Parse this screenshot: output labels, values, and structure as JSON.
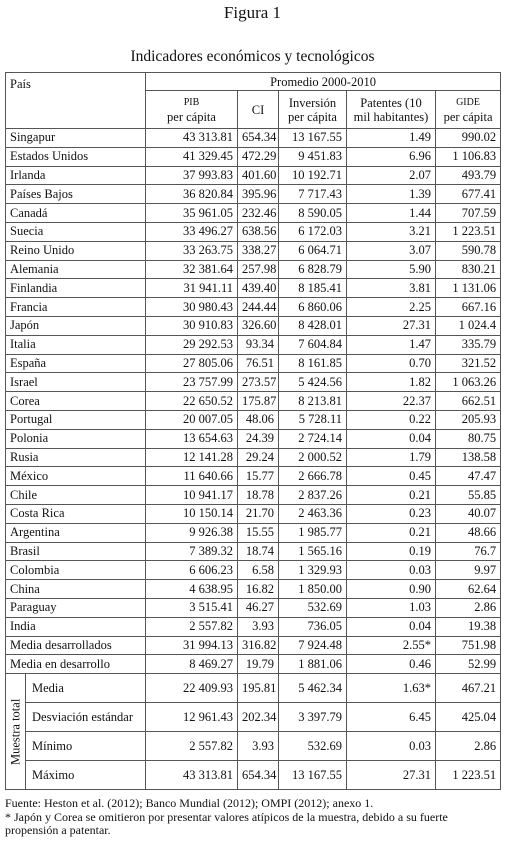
{
  "figure_label": "Figura 1",
  "title": "Indicadores económicos y tecnológicos",
  "table": {
    "country_header": "País",
    "group_header": "Promedio 2000-2010",
    "columns": [
      [
        "PIB",
        "per cápita"
      ],
      [
        "CI"
      ],
      [
        "Inversión",
        "per cápita"
      ],
      [
        "Patentes (10",
        "mil habitantes)"
      ],
      [
        "GIDE",
        "per cápita"
      ]
    ],
    "rows": [
      [
        "Singapur",
        "43 313.81",
        "654.34",
        "13 167.55",
        "1.49",
        "990.02"
      ],
      [
        "Estados Unidos",
        "41 329.45",
        "472.29",
        "9 451.83",
        "6.96",
        "1 106.83"
      ],
      [
        "Irlanda",
        "37 993.83",
        "401.60",
        "10 192.71",
        "2.07",
        "493.79"
      ],
      [
        "Países Bajos",
        "36 820.84",
        "395.96",
        "7 717.43",
        "1.39",
        "677.41"
      ],
      [
        "Canadá",
        "35 961.05",
        "232.46",
        "8 590.05",
        "1.44",
        "707.59"
      ],
      [
        "Suecia",
        "33 496.27",
        "638.56",
        "6 172.03",
        "3.21",
        "1 223.51"
      ],
      [
        "Reino Unido",
        "33 263.75",
        "338.27",
        "6 064.71",
        "3.07",
        "590.78"
      ],
      [
        "Alemania",
        "32 381.64",
        "257.98",
        "6 828.79",
        "5.90",
        "830.21"
      ],
      [
        "Finlandia",
        "31 941.11",
        "439.40",
        "8 185.41",
        "3.81",
        "1 131.06"
      ],
      [
        "Francia",
        "30 980.43",
        "244.44",
        "6 860.06",
        "2.25",
        "667.16"
      ],
      [
        "Japón",
        "30 910.83",
        "326.60",
        "8 428.01",
        "27.31",
        "1 024.4"
      ],
      [
        "Italia",
        "29 292.53",
        "93.34",
        "7 604.84",
        "1.47",
        "335.79"
      ],
      [
        "España",
        "27 805.06",
        "76.51",
        "8 161.85",
        "0.70",
        "321.52"
      ],
      [
        "Israel",
        "23 757.99",
        "273.57",
        "5 424.56",
        "1.82",
        "1 063.26"
      ],
      [
        "Corea",
        "22 650.52",
        "175.87",
        "8 213.81",
        "22.37",
        "662.51"
      ],
      [
        "Portugal",
        "20 007.05",
        "48.06",
        "5 728.11",
        "0.22",
        "205.93"
      ],
      [
        "Polonia",
        "13 654.63",
        "24.39",
        "2 724.14",
        "0.04",
        "80.75"
      ],
      [
        "Rusia",
        "12 141.28",
        "29.24",
        "2 000.52",
        "1.79",
        "138.58"
      ],
      [
        "México",
        "11 640.66",
        "15.77",
        "2 666.78",
        "0.45",
        "47.47"
      ],
      [
        "Chile",
        "10 941.17",
        "18.78",
        "2 837.26",
        "0.21",
        "55.85"
      ],
      [
        "Costa Rica",
        "10 150.14",
        "21.70",
        "2 463.36",
        "0.23",
        "40.07"
      ],
      [
        "Argentina",
        "9 926.38",
        "15.55",
        "1 985.77",
        "0.21",
        "48.66"
      ],
      [
        "Brasil",
        "7 389.32",
        "18.74",
        "1 565.16",
        "0.19",
        "76.7"
      ],
      [
        "Colombia",
        "6 606.23",
        "6.58",
        "1 329.93",
        "0.03",
        "9.97"
      ],
      [
        "China",
        "4 638.95",
        "16.82",
        "1 850.00",
        "0.90",
        "62.64"
      ],
      [
        "Paraguay",
        "3 515.41",
        "46.27",
        "532.69",
        "1.03",
        "2.86"
      ],
      [
        "India",
        "2 557.82",
        "3.93",
        "736.05",
        "0.04",
        "19.38"
      ],
      [
        "Media desarrollados",
        "31 994.13",
        "316.82",
        "7 924.48",
        "2.55*",
        "751.98"
      ],
      [
        "Media en desarrollo",
        "8 469.27",
        "19.79",
        "1 881.06",
        "0.46",
        "52.99"
      ]
    ],
    "summary_label": "Muestra total",
    "summary_rows": [
      [
        "Media",
        "22 409.93",
        "195.81",
        "5 462.34",
        "1.63*",
        "467.21"
      ],
      [
        "Desviación estándar",
        "12 961.43",
        "202.34",
        "3 397.79",
        "6.45",
        "425.04"
      ],
      [
        "Mínimo",
        "2 557.82",
        "3.93",
        "532.69",
        "0.03",
        "2.86"
      ],
      [
        "Máximo",
        "43 313.81",
        "654.34",
        "13 167.55",
        "27.31",
        "1 223.51"
      ]
    ]
  },
  "footnotes": [
    "Fuente: Heston et al. (2012); Banco Mundial (2012); OMPI (2012); anexo 1.",
    "* Japón y Corea se omitieron por presentar valores atípicos de la muestra, debido a su fuerte propensión a patentar."
  ]
}
